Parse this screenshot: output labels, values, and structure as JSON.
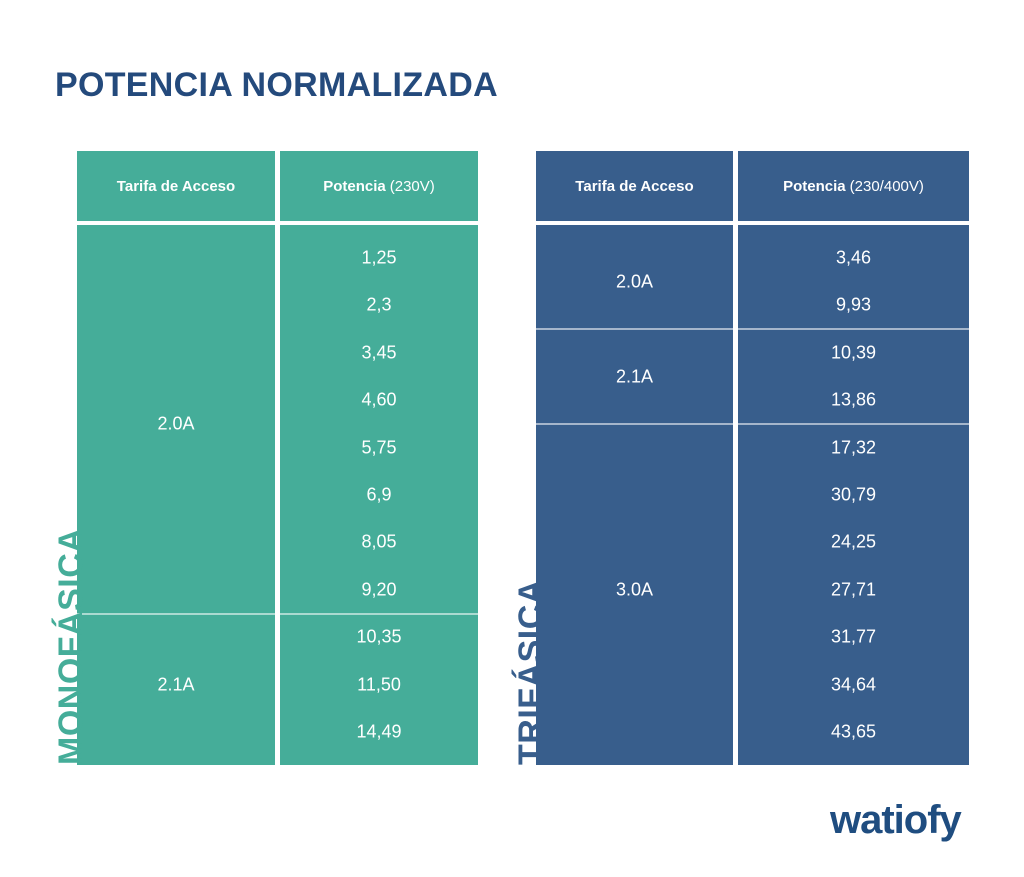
{
  "title": "POTENCIA NORMALIZADA",
  "colors": {
    "title": "#244a7c",
    "mono": "#45ad99",
    "tri": "#385e8c",
    "logo": "#1f4d80"
  },
  "monofasica": {
    "label": "MONOFÁSICA",
    "header": {
      "tarifa": "Tarifa de Acceso",
      "potencia": "Potencia",
      "voltage": "(230V)"
    },
    "groups": [
      {
        "tarifa": "2.0A",
        "values": [
          "1,25",
          "2,3",
          "3,45",
          "4,60",
          "5,75",
          "6,9",
          "8,05",
          "9,20"
        ]
      },
      {
        "tarifa": "2.1A",
        "values": [
          "10,35",
          "11,50",
          "14,49"
        ]
      }
    ]
  },
  "trifasica": {
    "label": "TRIFÁSICA",
    "header": {
      "tarifa": "Tarifa de Acceso",
      "potencia": "Potencia",
      "voltage": "(230/400V)"
    },
    "groups": [
      {
        "tarifa": "2.0A",
        "values": [
          "3,46",
          "9,93"
        ]
      },
      {
        "tarifa": "2.1A",
        "values": [
          "10,39",
          "13,86"
        ]
      },
      {
        "tarifa": "3.0A",
        "values": [
          "17,32",
          "30,79",
          "24,25",
          "27,71",
          "31,77",
          "34,64",
          "43,65"
        ]
      }
    ]
  },
  "logo": {
    "text": "watiofy"
  }
}
